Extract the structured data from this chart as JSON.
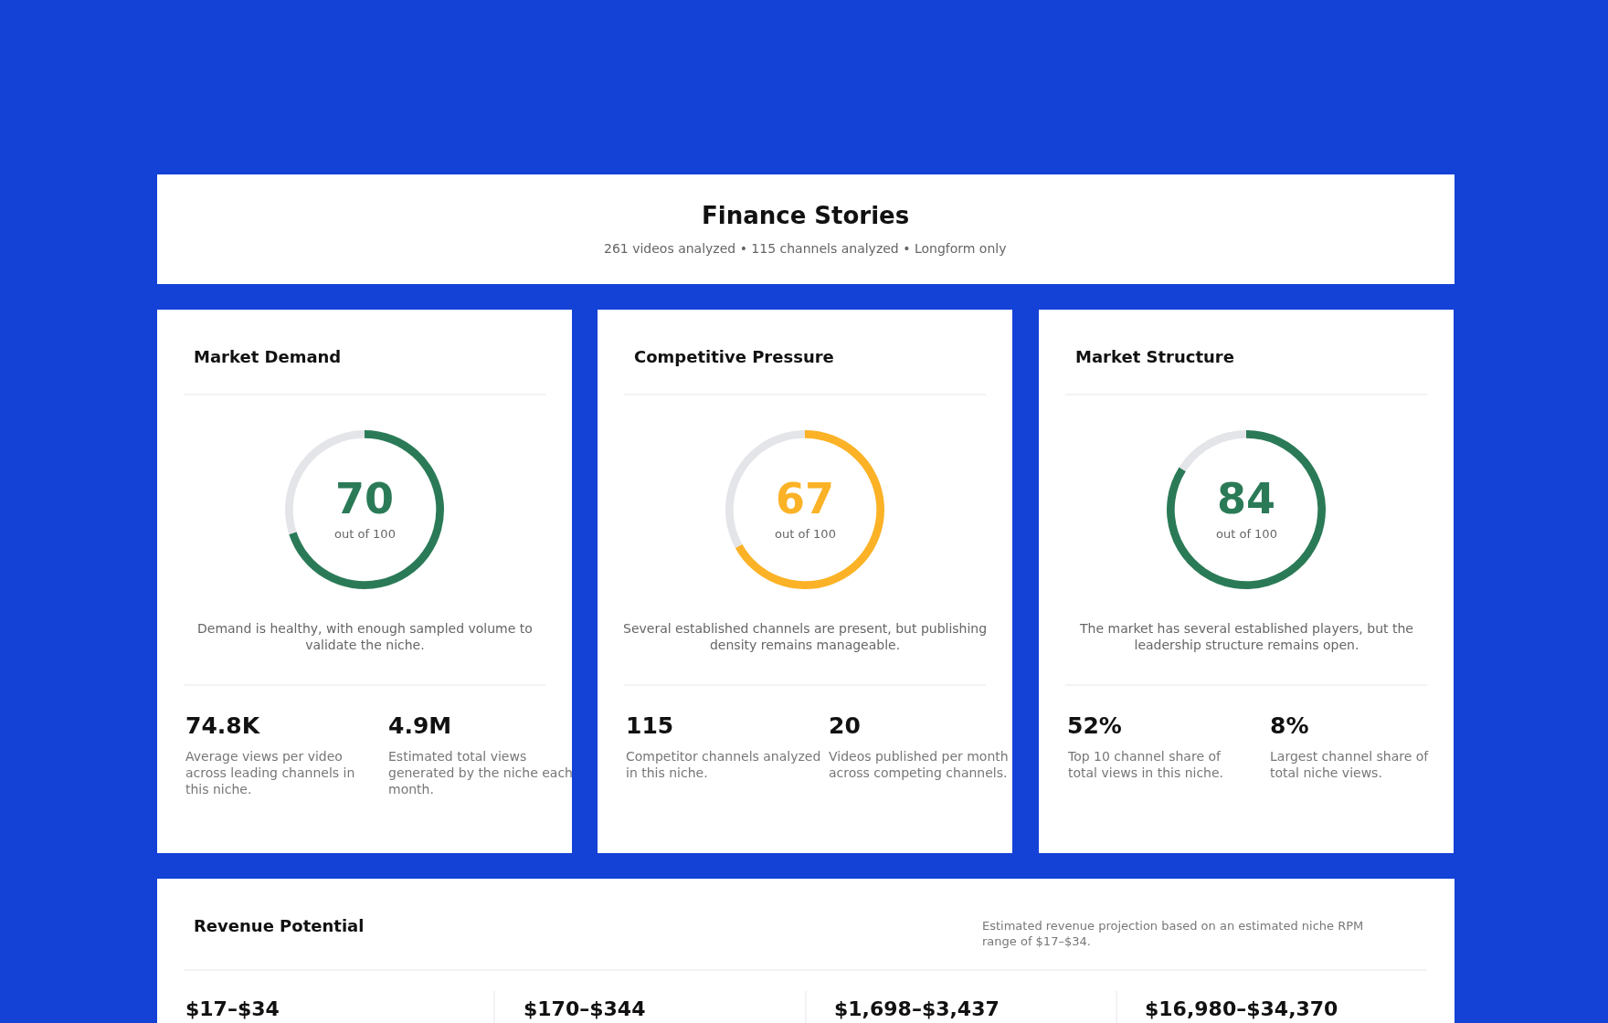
{
  "chart_data": [
    {
      "type": "other",
      "title": "Finance Stories",
      "subtitle": "261 videos analyzed • 115 channels analyzed • Longform only"
    },
    {
      "type": "donut",
      "title": "Market Demand",
      "categories": [
        null,
        null
      ],
      "values": [
        70,
        30
      ],
      "colors": [
        "#2b7a57",
        "#e4e5e9"
      ],
      "value_labels": [
        "70",
        null
      ],
      "annotations": [
        "out of 100",
        "Demand is healthy, with enough sampled volume to validate the niche.",
        "74.8K",
        "Average views per video across leading channels in this niche.",
        "4.9M",
        "Estimated total views generated by the niche each month."
      ]
    },
    {
      "type": "donut",
      "title": "Competitive Pressure",
      "categories": [
        null,
        null
      ],
      "values": [
        67,
        33
      ],
      "colors": [
        "#fbb226",
        "#e4e5e9"
      ],
      "value_labels": [
        "67",
        null
      ],
      "annotations": [
        "out of 100",
        "Several established channels are present, but publishing density remains manageable.",
        "115",
        "Competitor channels analyzed in this niche.",
        "20",
        "Videos published per month across competing channels."
      ]
    },
    {
      "type": "donut",
      "title": "Market Structure",
      "categories": [
        null,
        null
      ],
      "values": [
        84,
        16
      ],
      "colors": [
        "#2b7a57",
        "#e4e5e9"
      ],
      "value_labels": [
        "84",
        null
      ],
      "annotations": [
        "out of 100",
        "The market has several established players, but the leadership structure remains open.",
        "52%",
        "Top 10 channel share of total views in this niche.",
        "8%",
        "Largest channel share of total niche views."
      ]
    },
    {
      "type": "other",
      "title": "Revenue Potential",
      "annotations": [
        "Estimated revenue projection based on an estimated niche RPM range of $17–$34.",
        "$17–$34",
        "$170–$344",
        "$1,698–$3,437",
        "$16,980–$34,370"
      ]
    }
  ]
}
